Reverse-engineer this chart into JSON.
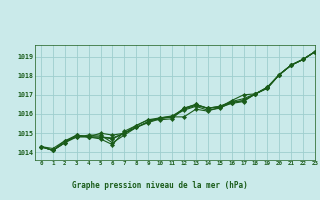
{
  "title": "Graphe pression niveau de la mer (hPa)",
  "background_color": "#caeaea",
  "plot_bg_color": "#caeaea",
  "line_color": "#1a5c1a",
  "grid_color": "#9ecece",
  "xlim": [
    -0.5,
    23
  ],
  "ylim": [
    1013.6,
    1019.6
  ],
  "xticks": [
    0,
    1,
    2,
    3,
    4,
    5,
    6,
    7,
    8,
    9,
    10,
    11,
    12,
    13,
    14,
    15,
    16,
    17,
    18,
    19,
    20,
    21,
    22,
    23
  ],
  "yticks": [
    1014,
    1015,
    1016,
    1017,
    1018,
    1019
  ],
  "series": [
    {
      "x": [
        0,
        1,
        2,
        3,
        4,
        5,
        6,
        7,
        8,
        9,
        10,
        11,
        12,
        13,
        14,
        15,
        16,
        17,
        18,
        19,
        20,
        21,
        22,
        23
      ],
      "y": [
        1014.3,
        1014.1,
        1014.5,
        1014.8,
        1014.8,
        1014.8,
        1014.7,
        1015.0,
        1015.3,
        1015.55,
        1015.75,
        1015.85,
        1015.85,
        1016.25,
        1016.15,
        1016.35,
        1016.55,
        1016.65,
        1017.05,
        1017.35,
        1018.05,
        1018.55,
        1018.85,
        1019.25
      ]
    },
    {
      "x": [
        0,
        1,
        2,
        3,
        4,
        5,
        6,
        7,
        8,
        9,
        10,
        11,
        12,
        13,
        14,
        15,
        16,
        17,
        18,
        19,
        20,
        21,
        22,
        23
      ],
      "y": [
        1014.3,
        1014.1,
        1014.5,
        1014.9,
        1014.8,
        1014.7,
        1014.4,
        1015.1,
        1015.4,
        1015.7,
        1015.7,
        1015.75,
        1016.3,
        1016.5,
        1016.3,
        1016.35,
        1016.7,
        1017.0,
        1017.05,
        1017.35,
        1018.05,
        1018.55,
        1018.85,
        1019.25
      ]
    },
    {
      "x": [
        0,
        1,
        2,
        3,
        4,
        5,
        6,
        7,
        8,
        9,
        10,
        11,
        12,
        13,
        14,
        15,
        16,
        17,
        18,
        19,
        20,
        21,
        22,
        23
      ],
      "y": [
        1014.3,
        1014.1,
        1014.5,
        1014.9,
        1014.8,
        1015.0,
        1014.9,
        1015.0,
        1015.4,
        1015.7,
        1015.8,
        1015.9,
        1016.25,
        1016.45,
        1016.3,
        1016.4,
        1016.6,
        1016.7,
        1017.05,
        1017.4,
        1018.05,
        1018.55,
        1018.85,
        1019.25
      ]
    },
    {
      "x": [
        0,
        1,
        2,
        3,
        4,
        5,
        6,
        7,
        8,
        9,
        10,
        11,
        12,
        13,
        14,
        15,
        16,
        17,
        18,
        19,
        20,
        21,
        22,
        23
      ],
      "y": [
        1014.3,
        1014.1,
        1014.6,
        1014.9,
        1014.8,
        1014.8,
        1014.75,
        1015.0,
        1015.3,
        1015.6,
        1015.8,
        1015.85,
        1016.3,
        1016.5,
        1016.3,
        1016.4,
        1016.65,
        1016.8,
        1017.05,
        1017.4,
        1018.05,
        1018.55,
        1018.85,
        1019.25
      ]
    },
    {
      "x": [
        0,
        1,
        2,
        3,
        4,
        5,
        6,
        7,
        8,
        9,
        10,
        11,
        12,
        13,
        14,
        15,
        16,
        17,
        18,
        19,
        20,
        21,
        22,
        23
      ],
      "y": [
        1014.3,
        1014.2,
        1014.6,
        1014.8,
        1014.9,
        1014.9,
        1014.5,
        1014.9,
        1015.3,
        1015.6,
        1015.8,
        1015.85,
        1016.2,
        1016.4,
        1016.2,
        1016.3,
        1016.6,
        1016.7,
        1017.05,
        1017.35,
        1018.05,
        1018.55,
        1018.85,
        1019.25
      ]
    }
  ]
}
